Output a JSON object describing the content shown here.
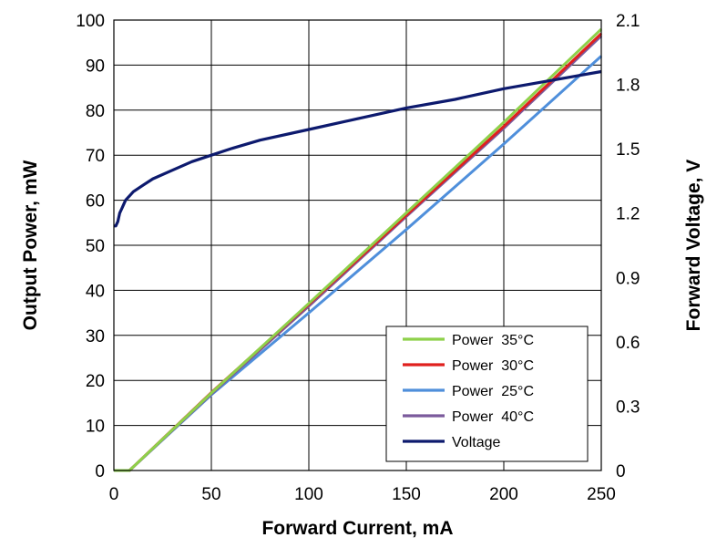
{
  "chart_data": {
    "type": "line",
    "xlabel": "Forward Current, mA",
    "ylabel": "Output Power, mW",
    "y2label": "Forward Voltage, V",
    "xlim": [
      0,
      250
    ],
    "ylim": [
      0,
      100
    ],
    "y2lim": [
      0,
      2.1
    ],
    "xticks": [
      "0",
      "50",
      "100",
      "150",
      "200",
      "250"
    ],
    "yticks": [
      "0",
      "10",
      "20",
      "30",
      "40",
      "50",
      "60",
      "70",
      "80",
      "90",
      "100"
    ],
    "y2ticks": [
      "0",
      "0.3",
      "0.6",
      "0.9",
      "1.2",
      "1.5",
      "1.8",
      "2.1"
    ],
    "grid": true,
    "legend_position": "bottom-right",
    "series": [
      {
        "name": "Power  35°C",
        "color": "#8ed14a",
        "axis": "left",
        "x": [
          0,
          8,
          50,
          100,
          150,
          200,
          250
        ],
        "y": [
          0,
          0,
          17.2,
          37.1,
          57.2,
          77.3,
          98.0
        ]
      },
      {
        "name": "Power  30°C",
        "color": "#e0201e",
        "axis": "left",
        "x": [
          0,
          8,
          50,
          100,
          150,
          200,
          250
        ],
        "y": [
          0,
          0,
          17.3,
          36.9,
          56.7,
          76.4,
          97.0
        ]
      },
      {
        "name": "Power  25°C",
        "color": "#4f8fdb",
        "axis": "left",
        "x": [
          0,
          8,
          50,
          100,
          150,
          200,
          250
        ],
        "y": [
          0,
          0,
          16.8,
          35.0,
          53.5,
          72.5,
          92.0
        ]
      },
      {
        "name": "Power  40°C",
        "color": "#7b5a9c",
        "axis": "left",
        "x": [
          0,
          8,
          50,
          100,
          150,
          200,
          250
        ],
        "y": [
          0,
          0,
          17.0,
          36.5,
          56.4,
          76.0,
          96.5
        ]
      },
      {
        "name": "Voltage",
        "color": "#0d1a6e",
        "axis": "right",
        "x": [
          0,
          1,
          2,
          3,
          4,
          5,
          6,
          8,
          10,
          15,
          20,
          30,
          40,
          50,
          60,
          75,
          100,
          125,
          150,
          175,
          200,
          225,
          250
        ],
        "y": [
          1.14,
          1.14,
          1.16,
          1.2,
          1.22,
          1.24,
          1.26,
          1.28,
          1.3,
          1.33,
          1.36,
          1.4,
          1.44,
          1.47,
          1.5,
          1.54,
          1.59,
          1.64,
          1.69,
          1.73,
          1.78,
          1.82,
          1.86
        ]
      }
    ]
  }
}
